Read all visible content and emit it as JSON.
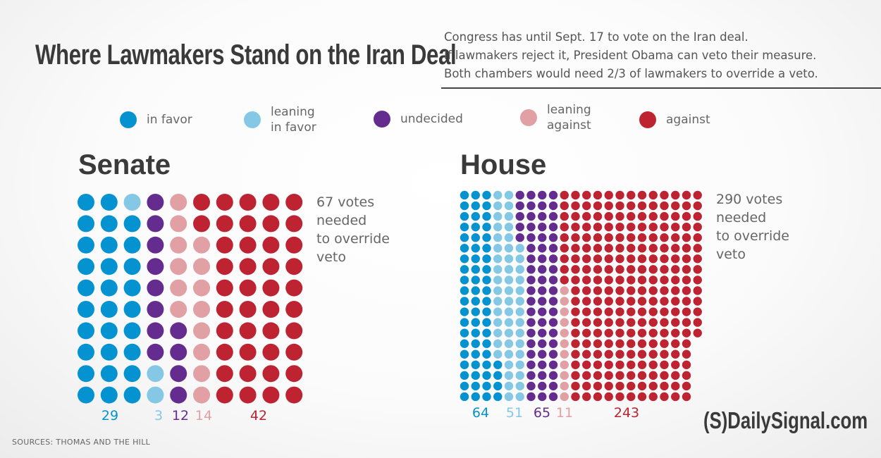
{
  "title": "Where Lawmakers Stand on the Iran Deal",
  "intro": [
    "Congress has until Sept. 17 to vote on the Iran deal.",
    "If lawmakers reject it, President Obama can veto their measure.",
    "Both chambers would need 2/3 of lawmakers to override a veto."
  ],
  "legend": [
    {
      "label1": "in favor",
      "label2": "",
      "color": "#0592d0"
    },
    {
      "label1": "leaning",
      "label2": "in favor",
      "color": "#85c8e6"
    },
    {
      "label1": "undecided",
      "label2": "",
      "color": "#652c90"
    },
    {
      "label1": "leaning",
      "label2": "against",
      "color": "#e0a0a4"
    },
    {
      "label1": "against",
      "label2": "",
      "color": "#be2331"
    }
  ],
  "chart_data": [
    {
      "type": "waffle",
      "title": "Senate",
      "rows": 10,
      "categories": [
        "in favor",
        "leaning in favor",
        "undecided",
        "leaning against",
        "against"
      ],
      "values": [
        29,
        3,
        12,
        14,
        42
      ],
      "counts_text": [
        "29",
        "3",
        "12",
        "14",
        "42"
      ],
      "note": [
        "67 votes",
        "needed",
        "to override",
        "veto"
      ]
    },
    {
      "type": "waffle",
      "title": "House",
      "rows": 20,
      "categories": [
        "in favor",
        "leaning in favor",
        "undecided",
        "leaning against",
        "against"
      ],
      "values": [
        64,
        51,
        65,
        11,
        243
      ],
      "counts_text": [
        "64",
        "51",
        "65",
        "11",
        "243"
      ],
      "note": [
        "290 votes",
        "needed",
        "to override",
        "veto"
      ]
    }
  ],
  "sources": "SOURCES: THOMAS AND THE HILL",
  "logo": "(S)DailySignal.com"
}
